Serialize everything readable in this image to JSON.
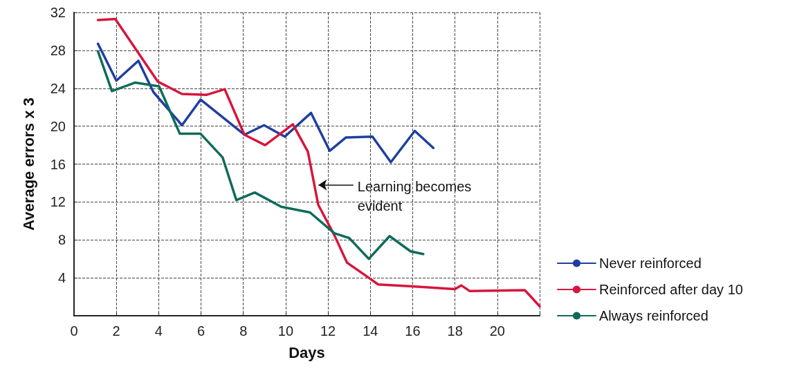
{
  "chart_data": {
    "type": "line",
    "xlabel": "Days",
    "ylabel": "Average errors x 3",
    "xlim": [
      0,
      22
    ],
    "xticks": [
      0,
      2,
      4,
      6,
      8,
      10,
      12,
      14,
      16,
      18,
      20,
      {
        "value": 22,
        "label": null
      }
    ],
    "ylim": [
      0,
      32
    ],
    "yticks": [
      4,
      8,
      12,
      16,
      20,
      24,
      28,
      32
    ],
    "grid": true,
    "legend": "right",
    "marker": "none",
    "line_style": "solid",
    "annotations": [
      {
        "text": "Learning becomes\nevident",
        "x": 11.55,
        "y": 13.8
      }
    ],
    "series": [
      {
        "name": "Never reinforced",
        "color": "#1f3f9f",
        "x": [
          1.13,
          2.0,
          3.04,
          3.75,
          5.1,
          5.98,
          8.05,
          8.98,
          9.96,
          11.2,
          12.08,
          12.84,
          14.1,
          14.97,
          16.1,
          16.98
        ],
        "values": [
          28.7,
          24.8,
          26.9,
          23.6,
          20.1,
          22.8,
          19.1,
          20.1,
          18.9,
          21.4,
          17.4,
          18.8,
          18.9,
          16.2,
          19.5,
          17.7
        ]
      },
      {
        "name": "Reinforced after day 10",
        "color": "#d6163c",
        "x": [
          1.13,
          1.95,
          3.96,
          5.1,
          6.25,
          7.12,
          8.05,
          9.03,
          10.34,
          11.05,
          11.54,
          12.3,
          12.9,
          13.93,
          14.37,
          16.0,
          18.0,
          18.3,
          18.7,
          21.3,
          22.0
        ],
        "values": [
          31.2,
          31.3,
          24.7,
          23.4,
          23.3,
          23.9,
          19.1,
          18.0,
          20.2,
          17.3,
          11.7,
          8.5,
          5.6,
          4.0,
          3.3,
          3.1,
          2.8,
          3.2,
          2.6,
          2.7,
          1.0
        ]
      },
      {
        "name": "Always reinforced",
        "color": "#0f6b5a",
        "x": [
          1.13,
          1.79,
          2.88,
          4.02,
          5.0,
          5.98,
          7.02,
          7.67,
          8.54,
          9.79,
          11.15,
          12.3,
          13.0,
          13.93,
          14.91,
          15.9,
          16.5
        ],
        "values": [
          27.9,
          23.7,
          24.6,
          24.2,
          19.2,
          19.2,
          16.7,
          12.2,
          13.0,
          11.5,
          10.9,
          8.7,
          8.2,
          6.0,
          8.4,
          6.8,
          6.5
        ]
      }
    ]
  }
}
